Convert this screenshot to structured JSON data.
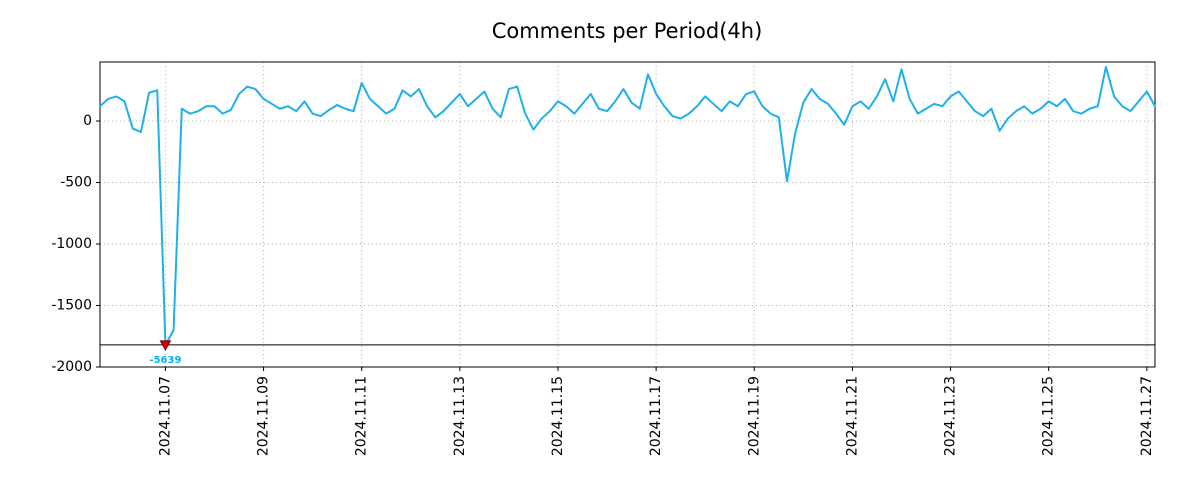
{
  "title": "Comments per Period(4h)",
  "colors": {
    "line": "#1fb0ea",
    "marker_fill": "#d40000",
    "marker_edge": "#7a0000",
    "grid": "#b0b0b0",
    "axis": "#000000",
    "baseline": "#000000",
    "min_label": "#00b2ee"
  },
  "chart_data": {
    "type": "line",
    "title": "Comments per Period(4h)",
    "xlabel": "",
    "ylabel": "",
    "period": "4h",
    "xlim_days": [
      0.6667,
      22.1667
    ],
    "ylim": [
      -2000,
      480
    ],
    "x_tick_days": [
      2,
      4,
      6,
      8,
      10,
      12,
      14,
      16,
      18,
      20,
      22
    ],
    "x_tick_labels": [
      "2024.11.07",
      "2024.11.09",
      "2024.11.11",
      "2024.11.13",
      "2024.11.15",
      "2024.11.17",
      "2024.11.19",
      "2024.11.21",
      "2024.11.23",
      "2024.11.25",
      "2024.11.27"
    ],
    "y_tick_values": [
      0,
      -500,
      -1000,
      -1500,
      -2000
    ],
    "y_tick_labels": [
      "0",
      "-500",
      "-1000",
      "-1500",
      "-2000"
    ],
    "grid": true,
    "legend": "none",
    "x_start_day": 0.6667,
    "x_step_days": 0.166667,
    "values": [
      120,
      180,
      200,
      160,
      -60,
      -90,
      230,
      250,
      -5639,
      -1700,
      100,
      60,
      80,
      120,
      120,
      60,
      90,
      220,
      280,
      260,
      180,
      140,
      100,
      120,
      80,
      160,
      60,
      40,
      90,
      130,
      100,
      80,
      310,
      180,
      120,
      60,
      100,
      250,
      200,
      260,
      120,
      30,
      80,
      150,
      220,
      120,
      180,
      240,
      100,
      30,
      260,
      280,
      60,
      -70,
      20,
      80,
      160,
      120,
      60,
      140,
      220,
      100,
      80,
      160,
      260,
      150,
      100,
      380,
      220,
      120,
      40,
      20,
      60,
      120,
      200,
      140,
      80,
      160,
      120,
      220,
      240,
      120,
      60,
      30,
      -490,
      -100,
      150,
      260,
      180,
      140,
      60,
      -30,
      120,
      160,
      100,
      200,
      340,
      160,
      420,
      180,
      60,
      100,
      140,
      120,
      200,
      240,
      160,
      80,
      40,
      100,
      -80,
      20,
      80,
      120,
      60,
      100,
      160,
      120,
      180,
      80,
      60,
      100,
      120,
      440,
      200,
      120,
      80,
      160,
      240,
      120
    ],
    "min_annotation": {
      "label": "-5639",
      "value": -5639,
      "day": 2.0,
      "clip_display_value": -1820
    },
    "baseline_value": -1820
  }
}
